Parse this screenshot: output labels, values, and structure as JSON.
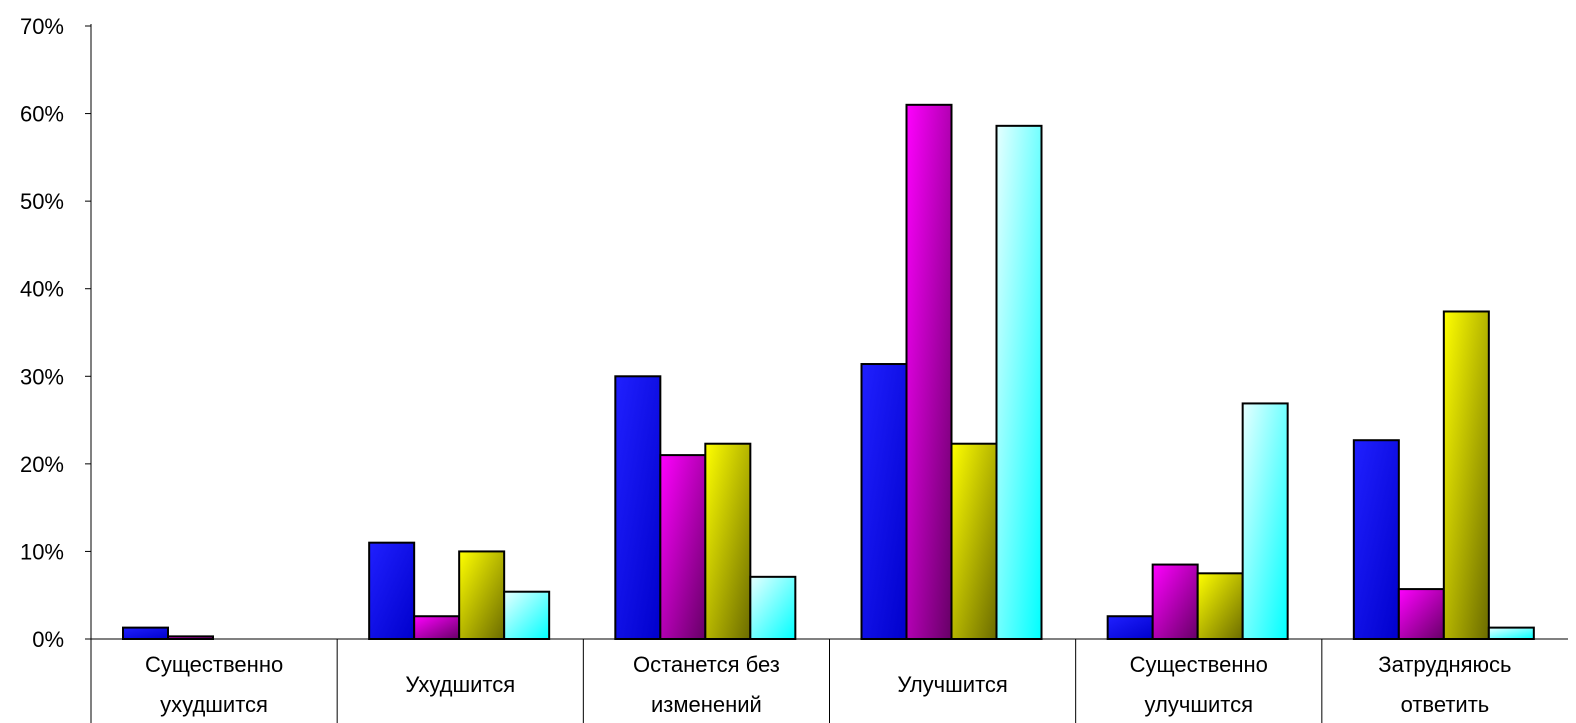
{
  "chart_data": {
    "type": "bar",
    "title": "",
    "xlabel": "",
    "ylabel": "",
    "ylim": [
      0,
      70
    ],
    "yticks": [
      "0%",
      "10%",
      "20%",
      "30%",
      "40%",
      "50%",
      "60%",
      "70%"
    ],
    "grid": false,
    "legend": "none",
    "categories": [
      [
        "Существенно",
        "ухудшится"
      ],
      [
        "Ухудшится"
      ],
      [
        "Останется без",
        "изменений"
      ],
      [
        "Улучшится"
      ],
      [
        "Существенно",
        "улучшится"
      ],
      [
        "Затрудняюсь",
        "ответить"
      ]
    ],
    "series": [
      {
        "color_light": "#2020ff",
        "color_dark": "#0000cc",
        "values": [
          1.3,
          11.0,
          30.0,
          31.4,
          2.6,
          22.7
        ]
      },
      {
        "color_light": "#ff00ff",
        "color_dark": "#660066",
        "values": [
          0.3,
          2.6,
          21.0,
          61.0,
          8.5,
          5.7
        ]
      },
      {
        "color_light": "#ffff00",
        "color_dark": "#6b6b00",
        "values": [
          0.0,
          10.0,
          22.3,
          22.3,
          7.5,
          37.4
        ]
      },
      {
        "color_light": "#e6ffff",
        "color_dark": "#00ffff",
        "values": [
          0.0,
          5.4,
          7.1,
          58.6,
          26.9,
          1.3
        ]
      }
    ]
  }
}
